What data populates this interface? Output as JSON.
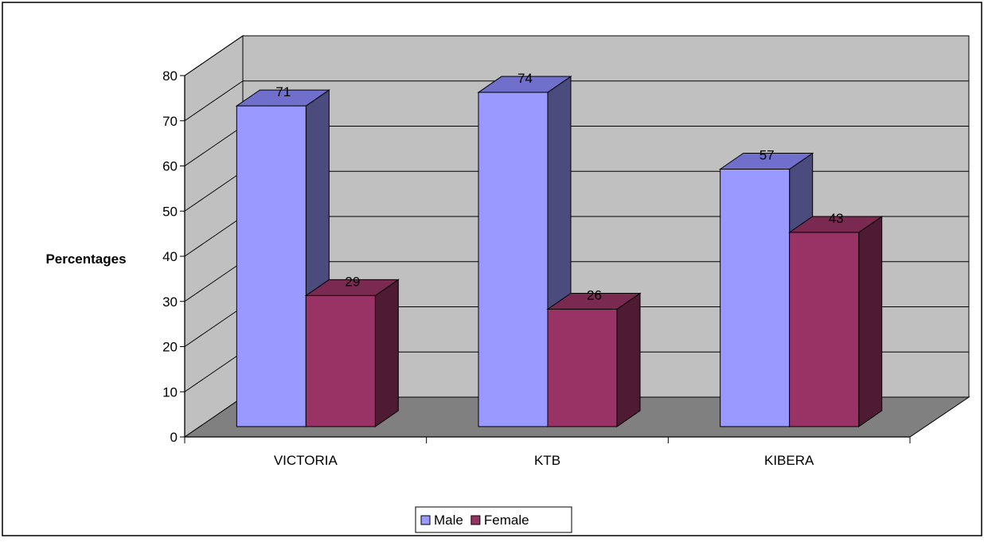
{
  "chart_data": {
    "type": "bar",
    "style": "3d-clustered-column",
    "title": "",
    "xlabel": "",
    "ylabel": "Percentages",
    "ylim": [
      0,
      80
    ],
    "ytick_step": 10,
    "grid": true,
    "legend_position": "bottom",
    "categories": [
      "VICTORIA",
      "KTB",
      "KIBERA"
    ],
    "series": [
      {
        "name": "Male",
        "values": [
          71,
          74,
          57
        ],
        "color": "#9999FF",
        "top_color": "#7070CC",
        "side_color": "#4B4B7E"
      },
      {
        "name": "Female",
        "values": [
          29,
          26,
          43
        ],
        "color": "#993366",
        "top_color": "#7A2950",
        "side_color": "#4F1A33"
      }
    ],
    "colors": {
      "wall": "#C0C0C0",
      "floor": "#808080",
      "gridline": "#000000"
    }
  }
}
